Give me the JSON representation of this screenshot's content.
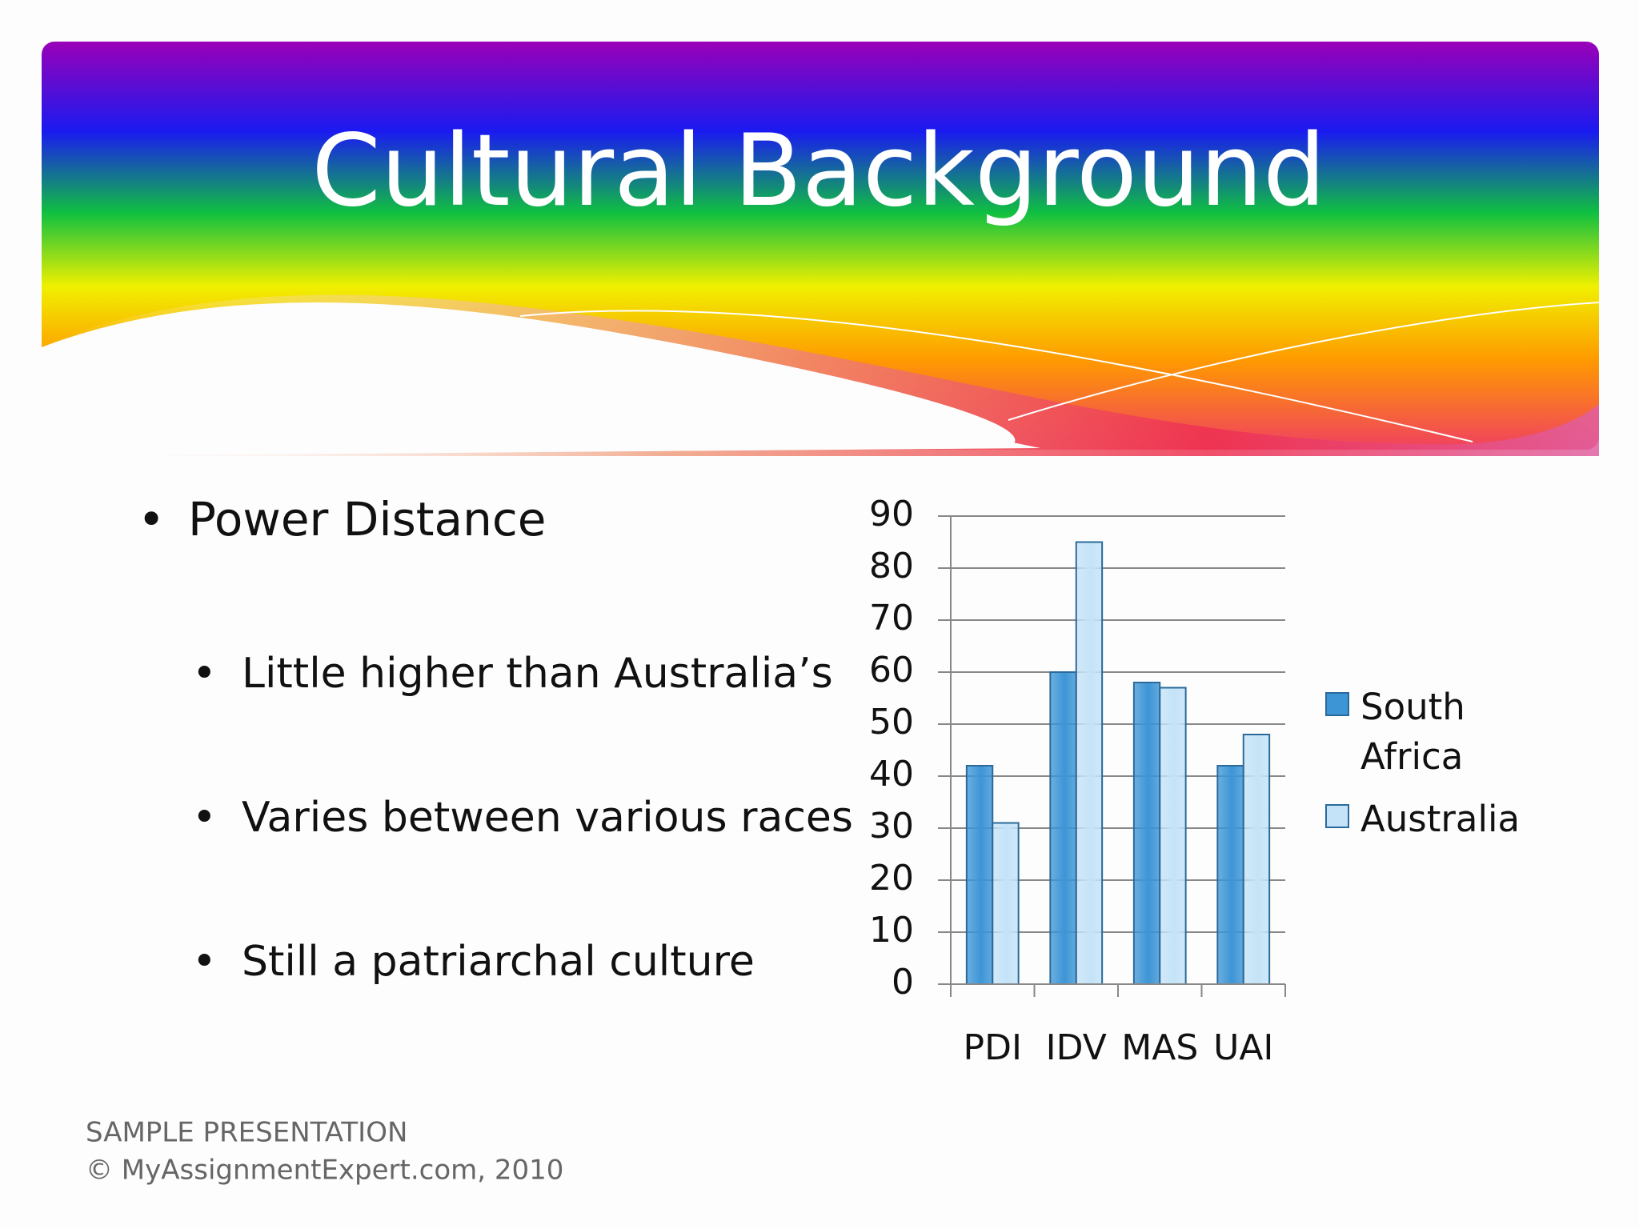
{
  "slide": {
    "title": "Cultural Background",
    "bullets": [
      "Power Distance"
    ],
    "sub_bullets": [
      "Little higher than Australia’s",
      "Varies between various races",
      "Still a patriarchal culture"
    ],
    "footer": [
      "SAMPLE PRESENTATION",
      "© MyAssignmentExpert.com, 2010"
    ]
  },
  "chart_data": {
    "type": "bar",
    "categories": [
      "PDI",
      "IDV",
      "MAS",
      "UAI"
    ],
    "series": [
      {
        "name": "South Africa",
        "color": "#3d95d6",
        "values": [
          42,
          60,
          58,
          42
        ]
      },
      {
        "name": "Australia",
        "color": "#c4e3f8",
        "values": [
          31,
          85,
          57,
          48
        ]
      }
    ],
    "ylim": [
      0,
      90
    ],
    "yticks": [
      0,
      10,
      20,
      30,
      40,
      50,
      60,
      70,
      80,
      90
    ],
    "grid": true,
    "legend": "right"
  }
}
